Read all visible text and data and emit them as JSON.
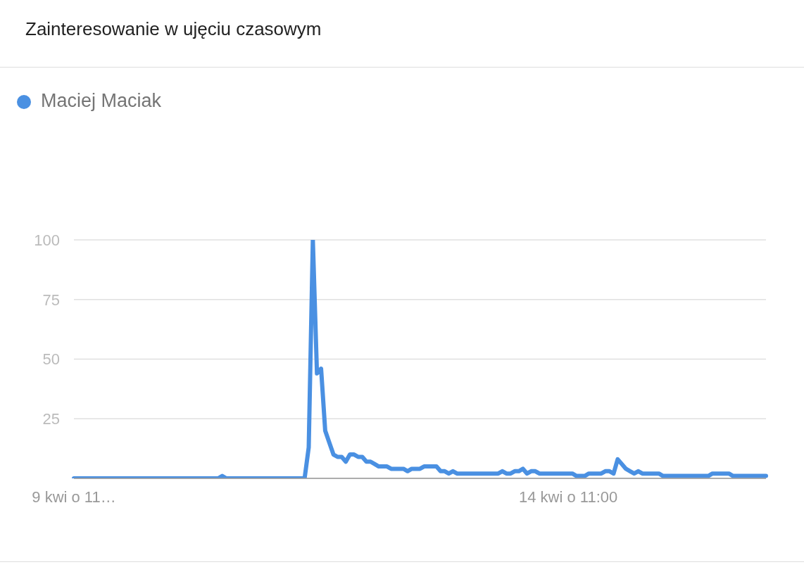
{
  "chart_data": {
    "type": "line",
    "title": "Zainteresowanie w ujęciu czasowym",
    "categories": [
      "9 kwi o 11…",
      null,
      null,
      null,
      null,
      null,
      null,
      null,
      null,
      null,
      null,
      null,
      null,
      null,
      null,
      null,
      null,
      null,
      null,
      null,
      null,
      null,
      null,
      null,
      null,
      null,
      null,
      null,
      null,
      null,
      null,
      null,
      null,
      null,
      null,
      null,
      null,
      null,
      null,
      null,
      null,
      null,
      null,
      null,
      null,
      null,
      null,
      null,
      null,
      null,
      null,
      null,
      null,
      null,
      null,
      null,
      null,
      null,
      null,
      null,
      null,
      null,
      null,
      null,
      null,
      null,
      null,
      null,
      null,
      null,
      null,
      null,
      null,
      null,
      null,
      null,
      null,
      null,
      null,
      null,
      null,
      null,
      null,
      null,
      null,
      null,
      null,
      null,
      null,
      null,
      null,
      null,
      null,
      null,
      null,
      null,
      null,
      null,
      null,
      null,
      null,
      null,
      null,
      null,
      null,
      null,
      null,
      null,
      null,
      null,
      null,
      null,
      null,
      null,
      null,
      null,
      null,
      null,
      null,
      null,
      "14 kwi o 11:00",
      null,
      null,
      null,
      null,
      null,
      null,
      null,
      null,
      null,
      null,
      null,
      null,
      null,
      null,
      null,
      null,
      null,
      null,
      null,
      null,
      null,
      null,
      null,
      null,
      null,
      null,
      null,
      null,
      null,
      null,
      null,
      null,
      null,
      null,
      null,
      null,
      null,
      null,
      null,
      null,
      null,
      null,
      null,
      null,
      null,
      null,
      null,
      null
    ],
    "series": [
      {
        "name": "Maciej Maciak",
        "color": "#4a90e2",
        "values": [
          0,
          0,
          0,
          0,
          0,
          0,
          0,
          0,
          0,
          0,
          0,
          0,
          0,
          0,
          0,
          0,
          0,
          0,
          0,
          0,
          0,
          0,
          0,
          0,
          0,
          0,
          0,
          0,
          0,
          0,
          0,
          0,
          0,
          0,
          0,
          0,
          1,
          0,
          0,
          0,
          0,
          0,
          0,
          0,
          0,
          0,
          0,
          0,
          0,
          0,
          0,
          0,
          0,
          0,
          0,
          0,
          0,
          13,
          100,
          44,
          46,
          20,
          15,
          10,
          9,
          9,
          7,
          10,
          10,
          9,
          9,
          7,
          7,
          6,
          5,
          5,
          5,
          4,
          4,
          4,
          4,
          3,
          4,
          4,
          4,
          5,
          5,
          5,
          5,
          3,
          3,
          2,
          3,
          2,
          2,
          2,
          2,
          2,
          2,
          2,
          2,
          2,
          2,
          2,
          3,
          2,
          2,
          3,
          3,
          4,
          2,
          3,
          3,
          2,
          2,
          2,
          2,
          2,
          2,
          2,
          2,
          2,
          1,
          1,
          1,
          2,
          2,
          2,
          2,
          3,
          3,
          2,
          8,
          6,
          4,
          3,
          2,
          3,
          2,
          2,
          2,
          2,
          2,
          1,
          1,
          1,
          1,
          1,
          1,
          1,
          1,
          1,
          1,
          1,
          1,
          2,
          2,
          2,
          2,
          2,
          1,
          1,
          1,
          1,
          1,
          1,
          1,
          1,
          1
        ]
      }
    ],
    "ylim": [
      0,
      100
    ],
    "yticks": [
      {
        "value": 0,
        "label": null
      },
      25,
      50,
      75,
      100
    ],
    "grid": "y",
    "legend": "top left",
    "marker": "none",
    "line_style": "solid"
  }
}
